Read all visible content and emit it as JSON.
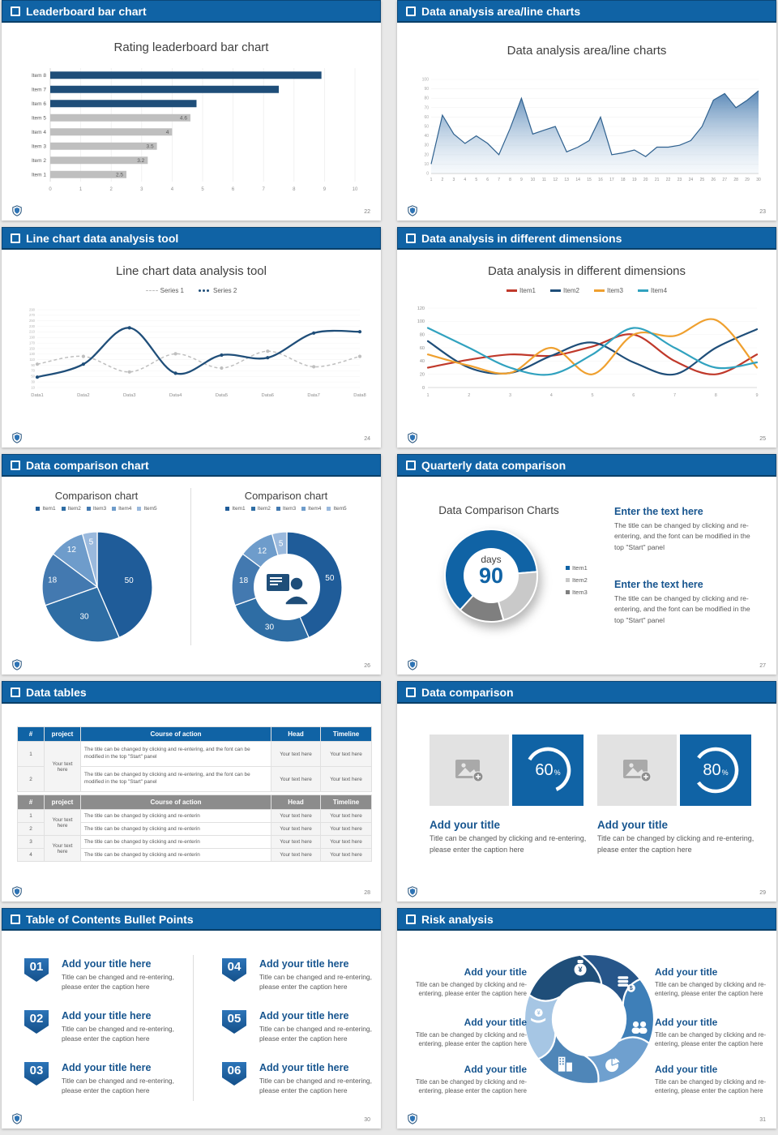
{
  "slides": [
    {
      "header": "Leaderboard bar chart",
      "page": "22"
    },
    {
      "header": "Data analysis area/line charts",
      "page": "23"
    },
    {
      "header": "Line chart data analysis tool",
      "page": "24"
    },
    {
      "header": "Data analysis in different dimensions",
      "page": "25"
    },
    {
      "header": "Data comparison chart",
      "page": "26"
    },
    {
      "header": "Quarterly data comparison",
      "page": "27",
      "blocks": [
        {
          "title": "Enter the text here",
          "body": "The title can be changed by clicking and re-entering, and the font can be modified in the top \"Start\" panel"
        },
        {
          "title": "Enter the text here",
          "body": "The title can be changed by clicking and re-entering, and the font can be modified in the top \"Start\" panel"
        }
      ]
    },
    {
      "header": "Data tables",
      "page": "28",
      "tables": [
        {
          "columns": [
            "#",
            "project",
            "Course of action",
            "Head",
            "Timeline"
          ],
          "rows": [
            [
              "1",
              "Your text here",
              "The title can be changed by clicking and re-entering, and the font can be modified in the top \"Start\" panel",
              "Your text here",
              "Your text here"
            ],
            [
              "2",
              "",
              "The title can be changed by clicking and re-entering, and the font can be modified in the top \"Start\" panel",
              "Your text here",
              "Your text here"
            ]
          ]
        },
        {
          "columns": [
            "#",
            "project",
            "Course of action",
            "Head",
            "Timeline"
          ],
          "rows": [
            [
              "1",
              "Your text here",
              "The title can be changed by clicking and re-enterin",
              "Your text here",
              "Your text here"
            ],
            [
              "2",
              "",
              "The title can be changed by clicking and re-enterin",
              "Your text here",
              "Your text here"
            ],
            [
              "3",
              "Your text here",
              "The title can be changed by clicking and re-enterin",
              "Your text here",
              "Your text here"
            ],
            [
              "4",
              "",
              "The title can be changed by clicking and re-enterin",
              "Your text here",
              "Your text here"
            ]
          ]
        }
      ]
    },
    {
      "header": "Data comparison",
      "page": "29",
      "cards": [
        {
          "value": "60",
          "unit": "%",
          "percent": 60,
          "rotate": 210,
          "title": "Add your title",
          "caption": "Title can be changed by clicking and re-entering, please enter the caption here"
        },
        {
          "value": "80",
          "unit": "%",
          "percent": 80,
          "rotate": 216,
          "title": "Add your title",
          "caption": "Title can be changed by clicking and re-entering, please enter the caption here"
        }
      ]
    },
    {
      "header": "Table of Contents Bullet Points",
      "page": "30",
      "items": [
        {
          "num": "01",
          "title": "Add your title here",
          "caption": "Title can be changed and re-entering, please enter the caption here"
        },
        {
          "num": "02",
          "title": "Add your title here",
          "caption": "Title can be changed and re-entering, please enter the caption here"
        },
        {
          "num": "03",
          "title": "Add your title here",
          "caption": "Title can be changed and re-entering, please enter the caption here"
        },
        {
          "num": "04",
          "title": "Add your title here",
          "caption": "Title can be changed and re-entering, please enter the caption here"
        },
        {
          "num": "05",
          "title": "Add your title here",
          "caption": "Title can be changed and re-entering, please enter the caption here"
        },
        {
          "num": "06",
          "title": "Add your title here",
          "caption": "Title can be changed and re-entering, please enter the caption here"
        }
      ]
    },
    {
      "header": "Risk analysis",
      "page": "31",
      "blocks": [
        {
          "title": "Add your title",
          "caption": "Title can be changed by clicking and re-entering, please enter the caption here"
        },
        {
          "title": "Add your title",
          "caption": "Title can be changed by clicking and re-entering, please enter the caption here"
        },
        {
          "title": "Add your title",
          "caption": "Title can be changed by clicking and re-entering, please enter the caption here"
        },
        {
          "title": "Add your title",
          "caption": "Title can be changed by clicking and re-entering, please enter the caption here"
        },
        {
          "title": "Add your title",
          "caption": "Title can be changed by clicking and re-entering, please enter the caption here"
        },
        {
          "title": "Add your title",
          "caption": "Title can be changed by clicking and re-entering, please enter the caption here"
        }
      ],
      "diagram": {
        "blade_colors": [
          "#27568A",
          "#3E7FB8",
          "#6FA0CF",
          "#4F86B8",
          "#A6C6E4",
          "#1F4E79"
        ],
        "icons": [
          {
            "name": "coins-icon",
            "angle": -44
          },
          {
            "name": "team-icon",
            "angle": 10
          },
          {
            "name": "pie-chart-icon",
            "angle": 62
          },
          {
            "name": "building-icon",
            "angle": 118
          },
          {
            "name": "hand-coin-icon",
            "angle": 184
          },
          {
            "name": "money-bag-icon",
            "angle": -100
          }
        ]
      }
    }
  ],
  "chart_data": [
    {
      "type": "bar",
      "orientation": "horizontal",
      "title": "Rating leaderboard bar chart",
      "categories": [
        "Item 1",
        "Item 2",
        "Item 3",
        "Item 4",
        "Item 5",
        "Item 6",
        "Item 7",
        "Item 8"
      ],
      "values": [
        2.5,
        3.2,
        3.5,
        4,
        4.6,
        4.8,
        7.5,
        8.9
      ],
      "colors": [
        "#BFBFBF",
        "#BFBFBF",
        "#BFBFBF",
        "#BFBFBF",
        "#BFBFBF",
        "#1F4E79",
        "#1F4E79",
        "#1F4E79"
      ],
      "value_labels": [
        "2.5",
        "3.2",
        "3.5",
        "4",
        "4.6",
        "",
        "",
        ""
      ],
      "xlim": [
        0,
        10
      ],
      "x_ticks": [
        0,
        1,
        2,
        3,
        4,
        5,
        6,
        7,
        8,
        9,
        10
      ]
    },
    {
      "type": "area",
      "title": "Data analysis area/line charts",
      "x": [
        1,
        2,
        3,
        4,
        5,
        6,
        7,
        8,
        9,
        10,
        11,
        12,
        13,
        14,
        15,
        16,
        17,
        18,
        19,
        20,
        21,
        22,
        23,
        24,
        25,
        26,
        27,
        28,
        29,
        30
      ],
      "values": [
        10,
        62,
        42,
        32,
        40,
        32,
        20,
        48,
        80,
        42,
        46,
        50,
        23,
        28,
        35,
        60,
        20,
        22,
        25,
        18,
        28,
        28,
        30,
        35,
        50,
        78,
        85,
        70,
        78,
        88
      ],
      "ylim": [
        0,
        100
      ],
      "y_ticks": [
        0,
        10,
        20,
        30,
        40,
        50,
        60,
        70,
        80,
        90,
        100
      ],
      "line_color": "#2F618F"
    },
    {
      "type": "line",
      "title": "Line chart data analysis tool",
      "categories": [
        "Data1",
        "Data2",
        "Data3",
        "Data4",
        "Data5",
        "Data6",
        "Data7",
        "Data8"
      ],
      "ylim": [
        0,
        300
      ],
      "y_ticks": [
        "290",
        "270",
        "250",
        "230",
        "210",
        "190",
        "170",
        "150",
        "130",
        "110",
        "90",
        "70",
        "50",
        "30",
        "10"
      ],
      "series": [
        {
          "name": "Series 1",
          "color": "#BFBFBF",
          "dash": "dashed",
          "values": [
            90,
            120,
            60,
            130,
            75,
            140,
            80,
            120
          ]
        },
        {
          "name": "Series 2",
          "color": "#1F4E79",
          "dash": "solid",
          "values": [
            40,
            90,
            230,
            55,
            125,
            115,
            210,
            215
          ]
        }
      ]
    },
    {
      "type": "line",
      "title": "Data analysis in different dimensions",
      "x": [
        1,
        2,
        3,
        4,
        5,
        6,
        7,
        8,
        9
      ],
      "ylim": [
        0,
        120
      ],
      "y_ticks": [
        0,
        20,
        40,
        60,
        80,
        100,
        120
      ],
      "series": [
        {
          "name": "Item1",
          "color": "#C0392B",
          "values": [
            30,
            42,
            50,
            48,
            62,
            80,
            40,
            20,
            50
          ]
        },
        {
          "name": "Item2",
          "color": "#1F4E79",
          "values": [
            70,
            30,
            22,
            48,
            68,
            38,
            20,
            60,
            88
          ]
        },
        {
          "name": "Item3",
          "color": "#EFA02F",
          "values": [
            50,
            33,
            22,
            60,
            20,
            80,
            78,
            102,
            30
          ]
        },
        {
          "name": "Item4",
          "color": "#31A2BF",
          "values": [
            90,
            60,
            30,
            20,
            50,
            90,
            60,
            30,
            38
          ]
        }
      ]
    },
    {
      "type": "pie",
      "title": "Comparison chart",
      "labels": [
        "Item1",
        "Item2",
        "Item3",
        "Item4",
        "Item5"
      ],
      "values": [
        50,
        30,
        18,
        12,
        5
      ],
      "colors": [
        "#1F5C99",
        "#2E6DA4",
        "#4379B0",
        "#6E9CCB",
        "#9AB9DD"
      ]
    },
    {
      "type": "donut",
      "title": "Comparison chart",
      "labels": [
        "Item1",
        "Item2",
        "Item3",
        "Item4",
        "Item5"
      ],
      "values": [
        50,
        30,
        18,
        12,
        5
      ],
      "colors": [
        "#1F5C99",
        "#2E6DA4",
        "#4379B0",
        "#6E9CCB",
        "#9AB9DD"
      ],
      "center_icon": "presenter-icon"
    },
    {
      "type": "donut",
      "title": "Data Comparison Charts",
      "labels": [
        "Item1",
        "Item2",
        "Item3"
      ],
      "values": [
        62,
        22,
        16
      ],
      "colors": [
        "#1063A5",
        "#C9C9C9",
        "#7F7F7F"
      ],
      "center_label": "days",
      "center_value": "90",
      "start_angle_deg": 132
    }
  ]
}
